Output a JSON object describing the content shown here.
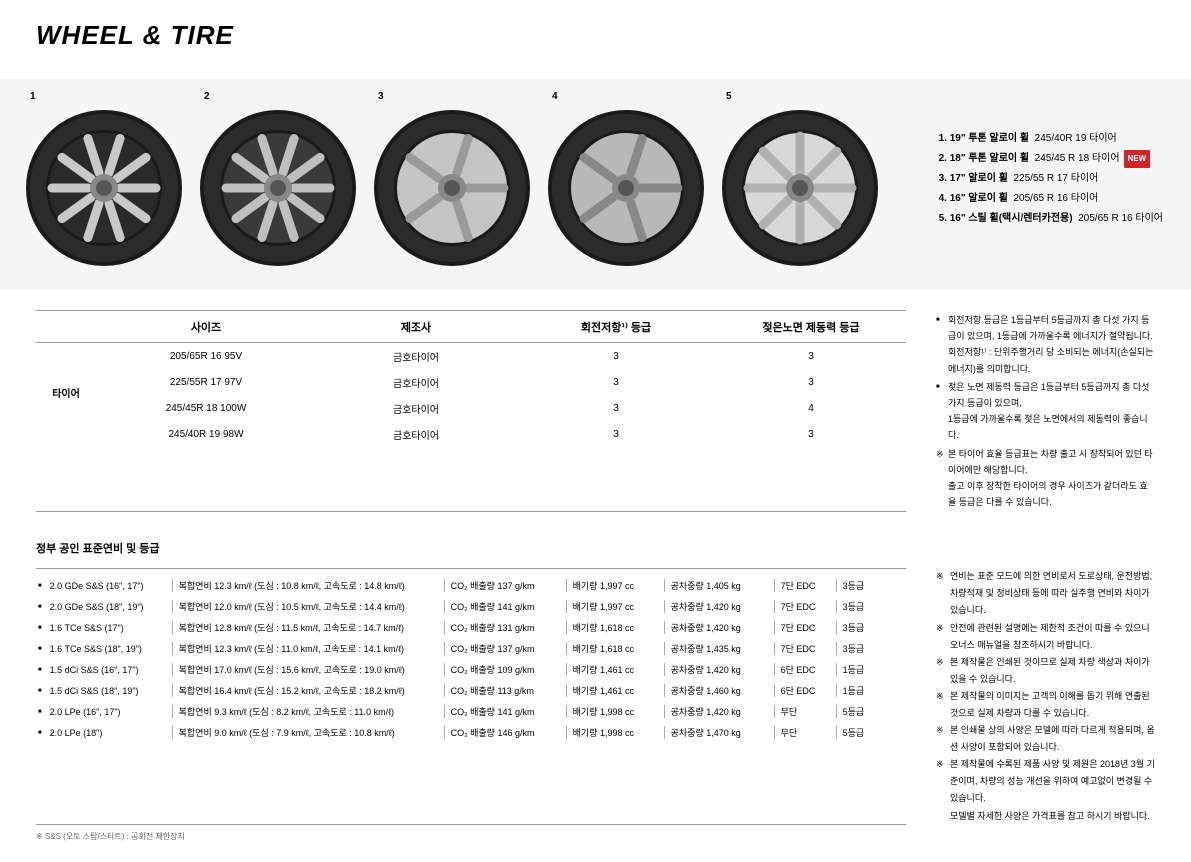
{
  "title": "WHEEL & TIRE",
  "wheels": [
    {
      "num": "1",
      "spokes": 10,
      "face": "#2a2a2a",
      "accent": "#c8c8c8"
    },
    {
      "num": "2",
      "spokes": 10,
      "face": "#3a3a3a",
      "accent": "#bfbfbf"
    },
    {
      "num": "3",
      "spokes": 5,
      "face": "#c5c5c5",
      "accent": "#9a9a9a"
    },
    {
      "num": "4",
      "spokes": 5,
      "face": "#b8b8b8",
      "accent": "#888888"
    },
    {
      "num": "5",
      "spokes": 8,
      "face": "#d8d8d8",
      "accent": "#b0b0b0"
    }
  ],
  "wheel_legend": [
    {
      "label": "1. 19\" 투톤 알로이 휠",
      "spec": "245/40R 19 타이어",
      "new": false
    },
    {
      "label": "2. 18\" 투톤 알로이 휠",
      "spec": "245/45 R 18 타이어",
      "new": true
    },
    {
      "label": "3. 17\" 알로이 휠",
      "spec": "225/55 R 17 타이어",
      "new": false
    },
    {
      "label": "4. 16\" 알로이 휠",
      "spec": "205/65 R 16 타이어",
      "new": false
    },
    {
      "label": "5. 16\" 스틸 휠(택시/렌터카전용)",
      "spec": "205/65 R 16 타이어",
      "new": false
    }
  ],
  "tire_table": {
    "headers": [
      "",
      "사이즈",
      "제조사",
      "회전저항¹⁾ 등급",
      "젖은노면 제동력 등급"
    ],
    "label": "타이어",
    "rows": [
      {
        "size": "205/65R 16 95V",
        "maker": "금호타이어",
        "rr": "3",
        "wet": "3"
      },
      {
        "size": "225/55R 17 97V",
        "maker": "금호타이어",
        "rr": "3",
        "wet": "3"
      },
      {
        "size": "245/45R 18 100W",
        "maker": "금호타이어",
        "rr": "3",
        "wet": "4"
      },
      {
        "size": "245/40R 19 98W",
        "maker": "금호타이어",
        "rr": "3",
        "wet": "3"
      }
    ]
  },
  "tire_notes": [
    {
      "type": "sq",
      "text": "회전저항 등급은 1등급부터 5등급까지 총 다섯 가지 등급이 있으며, 1등급에 가까울수록 에너지가 절약됩니다.",
      "cont": "회전저항¹⁾ : 단위주행거리 당 소비되는 에너지(손실되는 에너지)를 의미합니다."
    },
    {
      "type": "sq",
      "text": "젖은 노면 제동력 등급은 1등급부터 5등급까지 총 다섯가지 등급이 있으며,",
      "cont": "1등급에 가까울수록 젖은 노면에서의 제동력이 좋습니다."
    },
    {
      "type": "star",
      "text": "본 타이어 효율 등급표는 차량 출고 시 장착되어 있던 타이어에만 해당합니다.",
      "cont": "출고 이후 장착한 타이어의 경우 사이즈가 같더라도 효율 등급은 다를 수 있습니다."
    }
  ],
  "fuel_title": "정부 공인 표준연비 및 등급",
  "fuel_rows": [
    {
      "name": "2.0 GDe S&S (16\", 17\")",
      "combo": "복합연비  12.3 km/ℓ (도심 : 10.8 km/ℓ, 고속도로 : 14.8 km/ℓ)",
      "co2": "CO₂ 배출량 137 g/km",
      "disp": "배기량 1,997 cc",
      "weight": "공차중량 1,405 kg",
      "trans": "7단 EDC",
      "grade": "3등급"
    },
    {
      "name": "2.0 GDe S&S (18\", 19\")",
      "combo": "복합연비  12.0 km/ℓ (도심 : 10.5 km/ℓ, 고속도로 : 14.4 km/ℓ)",
      "co2": "CO₂ 배출량 141 g/km",
      "disp": "배기량 1,997 cc",
      "weight": "공차중량 1,420 kg",
      "trans": "7단 EDC",
      "grade": "3등급"
    },
    {
      "name": "1.6 TCe S&S (17\")",
      "combo": "복합연비  12.8 km/ℓ (도심 : 11.5 km/ℓ, 고속도로 : 14.7 km/ℓ)",
      "co2": "CO₂ 배출량 131 g/km",
      "disp": "배기량 1,618 cc",
      "weight": "공차중량 1,420 kg",
      "trans": "7단 EDC",
      "grade": "3등급"
    },
    {
      "name": "1.6 TCe S&S (18\", 19\")",
      "combo": "복합연비  12.3 km/ℓ (도심 : 11.0 km/ℓ, 고속도로 : 14.1 km/ℓ)",
      "co2": "CO₂ 배출량 137 g/km",
      "disp": "배기량 1,618 cc",
      "weight": "공차중량 1,435 kg",
      "trans": "7단 EDC",
      "grade": "3등급"
    },
    {
      "name": "1.5 dCi S&S (16\", 17\")",
      "combo": "복합연비  17.0 km/ℓ (도심 : 15.6 km/ℓ, 고속도로 : 19.0 km/ℓ)",
      "co2": "CO₂ 배출량 109 g/km",
      "disp": "배기량 1,461 cc",
      "weight": "공차중량 1,420 kg",
      "trans": "6단 EDC",
      "grade": "1등급"
    },
    {
      "name": "1.5 dCi S&S (18\", 19\")",
      "combo": "복합연비  16.4 km/ℓ (도심 : 15.2 km/ℓ, 고속도로 : 18.2 km/ℓ)",
      "co2": "CO₂ 배출량 113 g/km",
      "disp": "배기량 1,461 cc",
      "weight": "공차중량 1,460 kg",
      "trans": "6단 EDC",
      "grade": "1등급"
    },
    {
      "name": "2.0 LPe (16\", 17\")",
      "combo": "복합연비  9.3 km/ℓ (도심 : 8.2 km/ℓ, 고속도로 : 11.0 km/ℓ)",
      "co2": "CO₂ 배출량 141 g/km",
      "disp": "배기량 1,998 cc",
      "weight": "공차중량 1,420 kg",
      "trans": "무단",
      "grade": "5등급"
    },
    {
      "name": "2.0 LPe (18\")",
      "combo": "복합연비  9.0 km/ℓ (도심 : 7.9 km/ℓ, 고속도로 : 10.8 km/ℓ)",
      "co2": "CO₂ 배출량 146 g/km",
      "disp": "배기량 1,998 cc",
      "weight": "공차중량 1,470 kg",
      "trans": "무단",
      "grade": "5등급"
    }
  ],
  "fuel_footnote": "※ S&S (오토 스탑/스타트) : 공회전 제한장치",
  "fuel_notes": [
    "연비는 표준 모드에 의한 연비로서 도로상태, 운전방법, 차량적재 및 정비상태 등에 따라 실주행 연비와 차이가 있습니다.",
    "안전에 관련된 설명에는 제한적 조건이 따를 수 있으니 오너스 매뉴얼을 참조하시기 바랍니다.",
    "본 제작물은 인쇄된 것이므로 실제 차량 색상과 차이가 있을 수 있습니다.",
    "본 제작물의 이미지는 고객의 이해를 돕기 위해 연출된 것으로 실제 차량과 다를 수 있습니다.",
    "본 인쇄물 상의 사양은 모델에 따라 다르게 적용되며, 옵션 사양이 포함되어 있습니다.",
    "본 제작물에 수록된 제품 사양 및 제원은 2018년 3월 기준이며, 차량의 성능 개선을 위하여 예고없이 변경될 수 있습니다.",
    "모델별 자세한 사양은 가격표를 참고 하시기 바랍니다."
  ],
  "new_label": "NEW"
}
